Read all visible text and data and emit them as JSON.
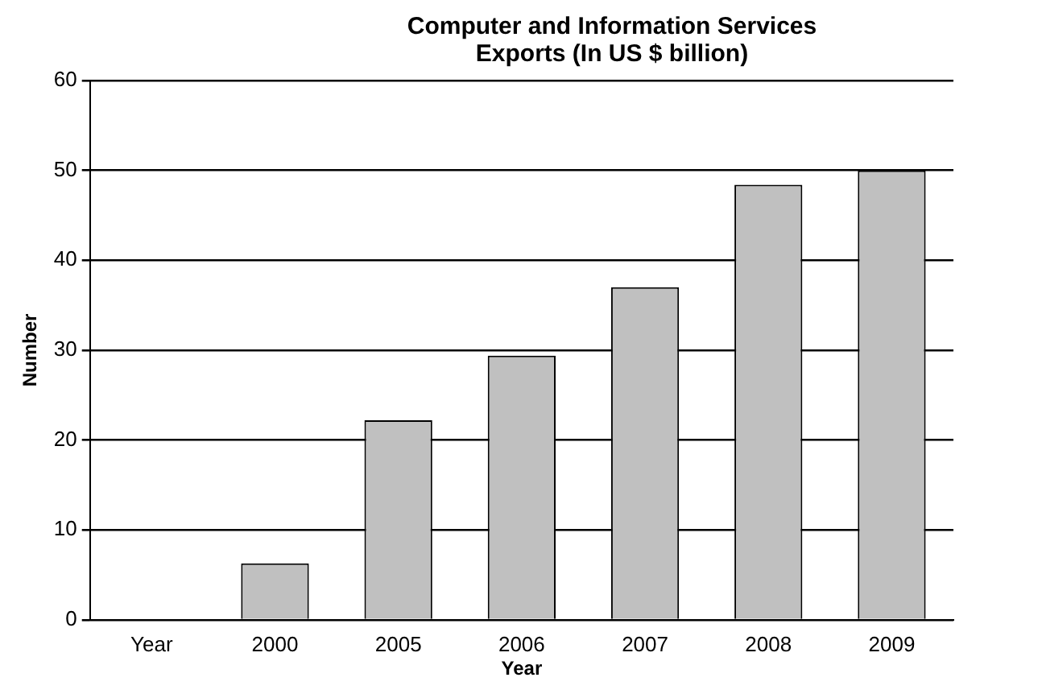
{
  "chart_data": {
    "type": "bar",
    "title": "Computer and Information Services Exports (In US $ billion)",
    "xlabel": "Year",
    "ylabel": "Number",
    "categories": [
      "Year",
      "2000",
      "2005",
      "2006",
      "2007",
      "2008",
      "2009"
    ],
    "values": [
      null,
      6.3,
      22.2,
      29.4,
      37.0,
      48.4,
      50.0
    ],
    "color": "#c0c0c0",
    "ylim": [
      0,
      60
    ],
    "yticks": [
      0,
      10,
      20,
      30,
      40,
      50,
      60
    ],
    "grid": "y",
    "legend": false
  }
}
